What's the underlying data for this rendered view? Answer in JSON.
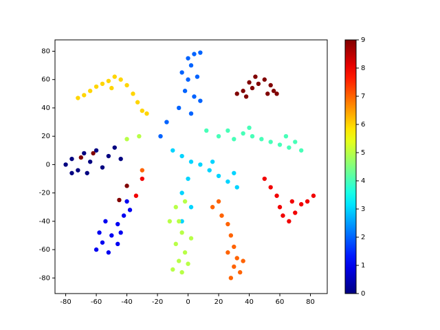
{
  "chart_data": {
    "type": "scatter",
    "colormap": "jet",
    "x": [
      -72,
      -68,
      -64,
      -60,
      -56,
      -52,
      -48,
      -44,
      -40,
      -36,
      -33,
      -30,
      -27,
      -50,
      32,
      36,
      40,
      44,
      46,
      50,
      54,
      56,
      58,
      52,
      42,
      38,
      -40,
      -45,
      -70,
      -62,
      0,
      4,
      8,
      2,
      -4,
      0,
      6,
      -2,
      4,
      -6,
      2,
      -14,
      -18,
      8,
      20,
      26,
      30,
      36,
      42,
      48,
      54,
      60,
      66,
      70,
      74,
      64,
      40,
      12,
      -80,
      -76,
      -72,
      -68,
      -64,
      -60,
      -56,
      -52,
      -48,
      -44,
      -76,
      -66,
      50,
      54,
      58,
      60,
      62,
      66,
      70,
      74,
      78,
      82,
      68,
      -34,
      -30,
      -60,
      -56,
      -52,
      -58,
      -50,
      -46,
      -42,
      -38,
      -46,
      -54,
      -40,
      -44,
      -10,
      -4,
      2,
      8,
      14,
      20,
      26,
      32,
      30,
      16,
      0,
      -4,
      2,
      -4,
      -8,
      -6,
      -4,
      -8,
      -2,
      -6,
      -10,
      -4,
      0,
      2,
      -12,
      -2,
      -40,
      -32,
      16,
      22,
      26,
      28,
      30,
      26,
      32,
      30,
      34,
      28,
      36,
      20,
      -30
    ],
    "y": [
      47,
      49,
      52,
      55,
      57,
      59,
      62,
      60,
      56,
      50,
      44,
      38,
      36,
      54,
      50,
      52,
      58,
      62,
      57,
      60,
      56,
      52,
      50,
      50,
      54,
      48,
      -15,
      -25,
      5,
      8,
      75,
      78,
      79,
      70,
      65,
      60,
      62,
      52,
      48,
      40,
      36,
      30,
      20,
      45,
      20,
      24,
      18,
      22,
      20,
      18,
      16,
      14,
      12,
      16,
      10,
      20,
      26,
      24,
      0,
      4,
      -4,
      8,
      2,
      10,
      -2,
      6,
      12,
      4,
      -6,
      -6,
      -10,
      -16,
      -22,
      -30,
      -36,
      -40,
      -34,
      -28,
      -26,
      -22,
      -26,
      -22,
      -10,
      -60,
      -55,
      -62,
      -48,
      -50,
      -42,
      -36,
      -32,
      -56,
      -40,
      -26,
      -48,
      10,
      6,
      2,
      0,
      -4,
      -8,
      -12,
      -16,
      -6,
      2,
      -10,
      -20,
      -30,
      -40,
      -30,
      -40,
      -48,
      -56,
      -62,
      -68,
      -74,
      -76,
      -70,
      -52,
      -40,
      -26,
      18,
      20,
      -30,
      -36,
      -42,
      -50,
      -58,
      -62,
      -66,
      -72,
      -76,
      -80,
      -68,
      -26,
      -4
    ],
    "values": [
      6,
      6,
      6,
      6,
      6,
      6,
      6,
      6,
      6,
      6,
      6,
      6,
      6,
      6,
      9,
      9,
      9,
      9,
      9,
      9,
      9,
      9,
      9,
      9,
      9,
      9,
      9,
      9,
      9,
      9,
      2,
      2,
      2,
      2,
      2,
      2,
      2,
      2,
      2,
      2,
      2,
      2,
      2,
      2,
      4,
      4,
      4,
      4,
      4,
      4,
      4,
      4,
      4,
      4,
      4,
      4,
      4,
      4,
      0,
      0,
      0,
      0,
      0,
      0,
      0,
      0,
      0,
      0,
      0,
      0,
      8,
      8,
      8,
      8,
      8,
      8,
      8,
      8,
      8,
      8,
      8,
      8,
      8,
      1,
      1,
      1,
      1,
      1,
      1,
      1,
      1,
      1,
      1,
      1,
      1,
      3,
      3,
      3,
      3,
      3,
      3,
      3,
      3,
      3,
      3,
      3,
      3,
      3,
      3,
      5,
      5,
      5,
      5,
      5,
      5,
      5,
      5,
      5,
      5,
      5,
      5,
      5,
      5,
      7,
      7,
      7,
      7,
      7,
      7,
      7,
      7,
      7,
      7,
      7,
      7,
      7
    ],
    "xlim": [
      -87,
      91
    ],
    "ylim": [
      -91,
      88
    ],
    "xticks": [
      -80,
      -60,
      -40,
      -20,
      0,
      20,
      40,
      60,
      80
    ],
    "yticks": [
      -80,
      -60,
      -40,
      -20,
      0,
      20,
      40,
      60,
      80
    ],
    "clim": [
      0,
      9
    ],
    "cticks": [
      0,
      1,
      2,
      3,
      4,
      5,
      6,
      7,
      8,
      9
    ]
  }
}
